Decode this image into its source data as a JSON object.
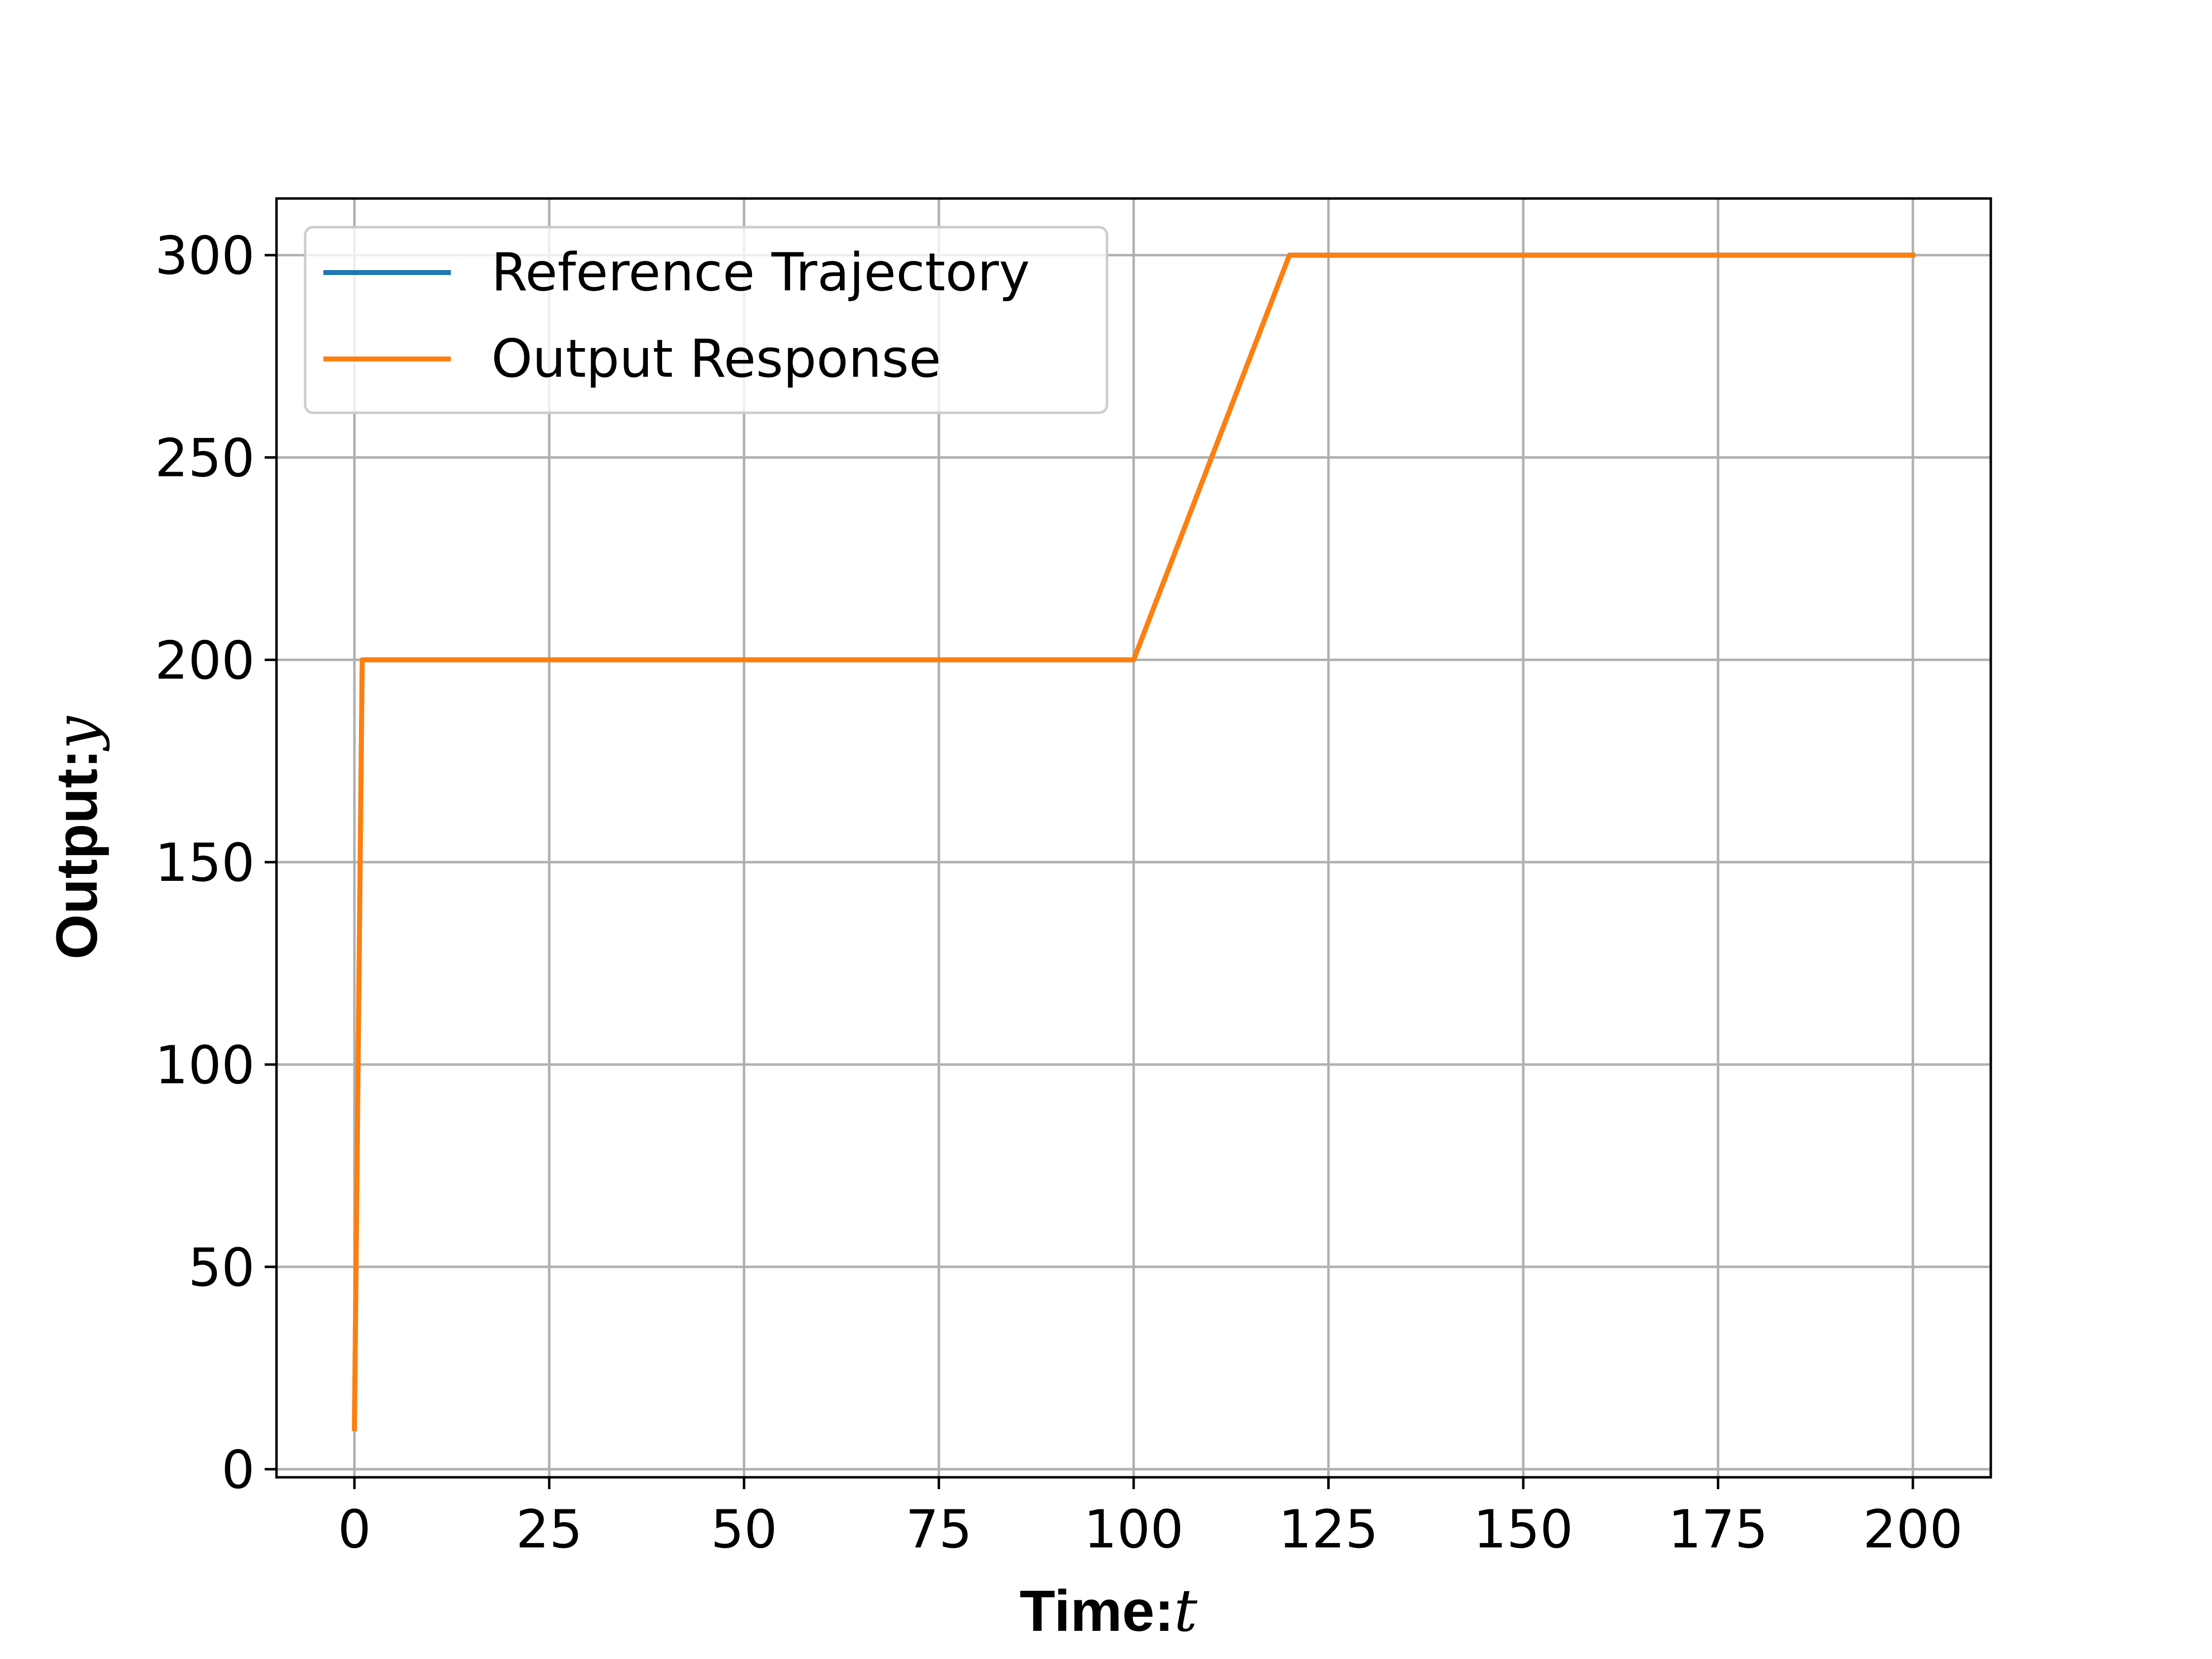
{
  "chart_data": {
    "type": "line",
    "xlabel": "Time:",
    "xlabel_var": "t",
    "ylabel": "Output:",
    "ylabel_var": "y",
    "xlim": [
      -10,
      210
    ],
    "ylim": [
      -2,
      314
    ],
    "xticks": [
      0,
      25,
      50,
      75,
      100,
      125,
      150,
      175,
      200
    ],
    "yticks": [
      0,
      50,
      100,
      150,
      200,
      250,
      300
    ],
    "grid": true,
    "legend_position": "upper-left",
    "series": [
      {
        "name": "Reference Trajectory",
        "color": "#1f77b4",
        "x": [
          0,
          1,
          100,
          120,
          200
        ],
        "y": [
          10,
          200,
          200,
          300,
          300
        ]
      },
      {
        "name": "Output Response",
        "color": "#ff7f0e",
        "x": [
          0,
          1,
          1.3,
          100,
          120,
          200
        ],
        "y": [
          10,
          200,
          200,
          200,
          300,
          300
        ]
      }
    ]
  }
}
